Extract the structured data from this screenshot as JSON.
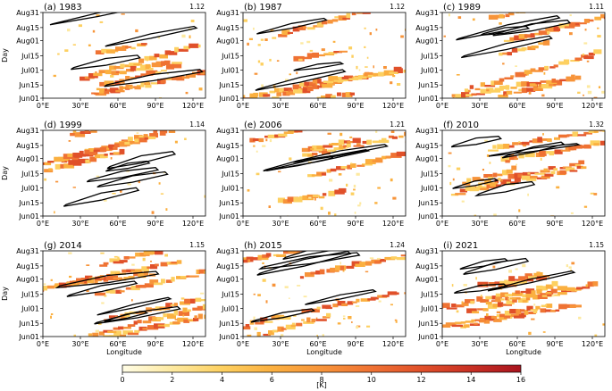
{
  "chart_data": [
    {
      "type": "heatmap",
      "title": "(a) 1983",
      "corner_value": "1.12"
    },
    {
      "type": "heatmap",
      "title": "(b) 1987",
      "corner_value": "1.12"
    },
    {
      "type": "heatmap",
      "title": "(c) 1989",
      "corner_value": "1.11"
    },
    {
      "type": "heatmap",
      "title": "(d) 1999",
      "corner_value": "1.14"
    },
    {
      "type": "heatmap",
      "title": "(e) 2006",
      "corner_value": "1.21"
    },
    {
      "type": "heatmap",
      "title": "(f) 2010",
      "corner_value": "1.32"
    },
    {
      "type": "heatmap",
      "title": "(g) 2014",
      "corner_value": "1.15"
    },
    {
      "type": "heatmap",
      "title": "(h) 2015",
      "corner_value": "1.24"
    },
    {
      "type": "heatmap",
      "title": "(i) 2021",
      "corner_value": "1.15"
    }
  ],
  "axes": {
    "ylabel": "Day",
    "xlabel": "Longitude",
    "y_ticks": [
      "Aug31",
      "Aug15",
      "Aug01",
      "Jul15",
      "Jul01",
      "Jun15",
      "Jun01"
    ],
    "x_ticks": [
      "0°E",
      "30°E",
      "60°E",
      "90°E",
      "120°E"
    ],
    "x_range": [
      0,
      130
    ],
    "y_range_days": [
      0,
      91
    ]
  },
  "colorbar": {
    "ticks": [
      "0",
      "2",
      "4",
      "6",
      "8",
      "10",
      "12",
      "14",
      "16"
    ],
    "range": [
      0,
      16
    ],
    "unit_label": "[K]",
    "colors": [
      "#fffde6",
      "#fde9a0",
      "#fdd060",
      "#fbb040",
      "#f7943a",
      "#ef7233",
      "#e0502a",
      "#c83024",
      "#a8141e"
    ]
  }
}
